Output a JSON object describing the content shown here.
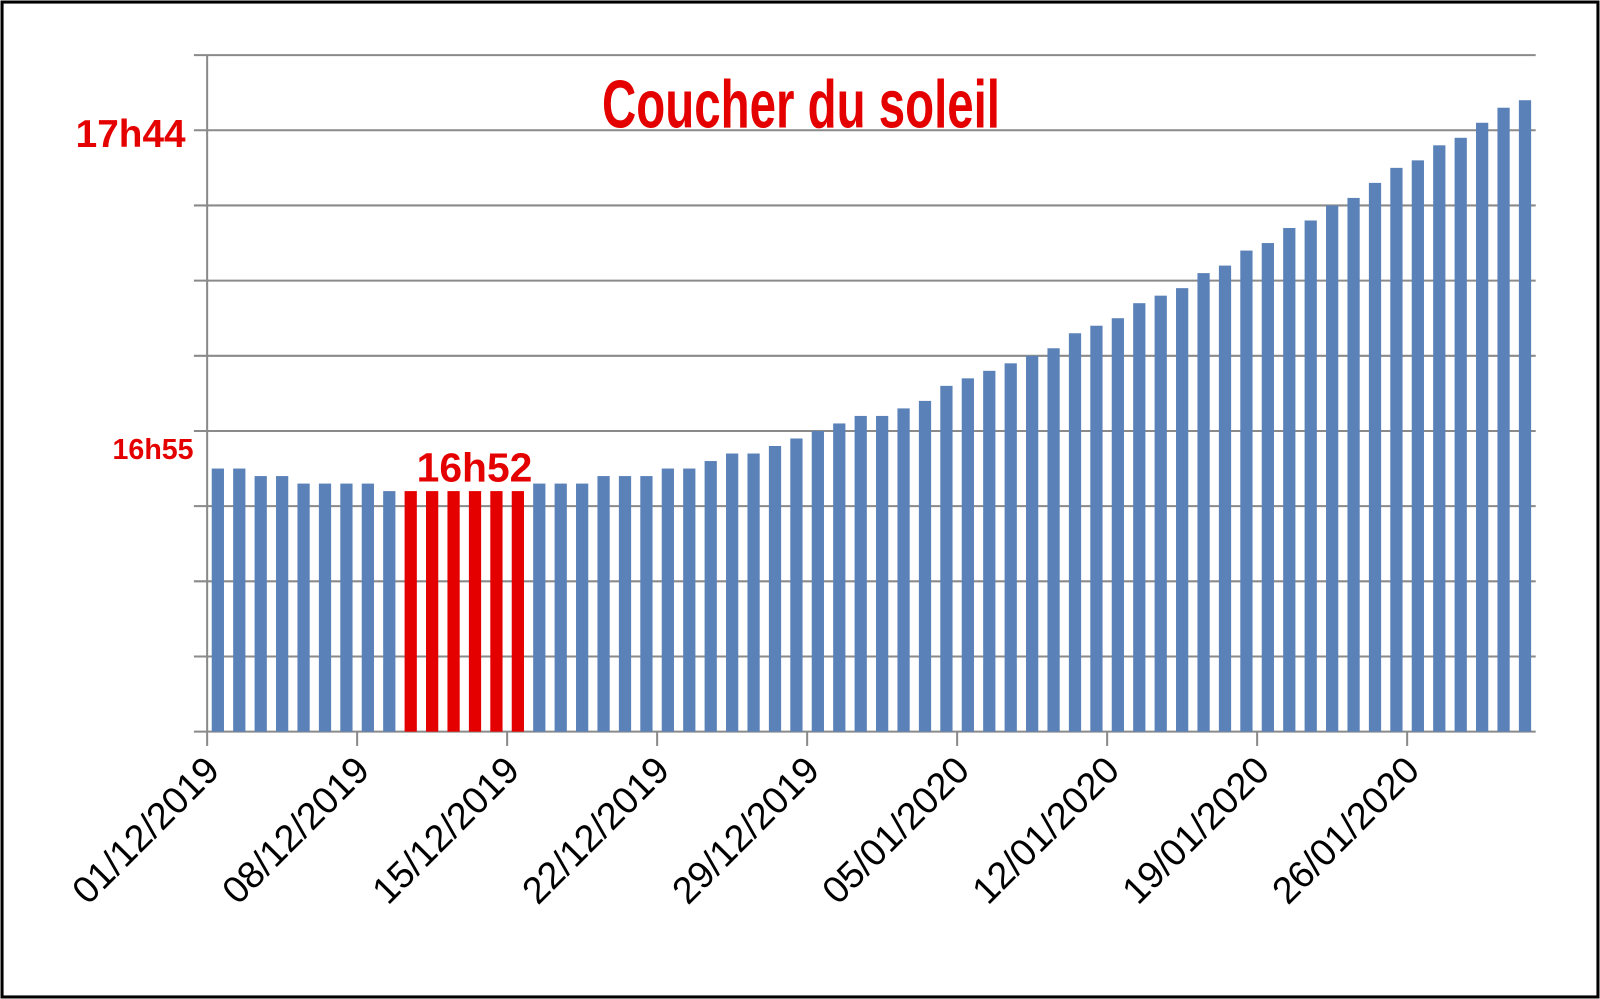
{
  "chart_data": {
    "type": "bar",
    "title": "Coucher du soleil",
    "annotations": [
      "17h44",
      "16h55",
      "16h52"
    ],
    "categories": [
      "01/12/2019",
      null,
      null,
      null,
      null,
      null,
      null,
      "08/12/2019",
      null,
      null,
      null,
      null,
      null,
      null,
      "15/12/2019",
      null,
      null,
      null,
      null,
      null,
      null,
      "22/12/2019",
      null,
      null,
      null,
      null,
      null,
      null,
      "29/12/2019",
      null,
      null,
      null,
      null,
      null,
      null,
      "05/01/2020",
      null,
      null,
      null,
      null,
      null,
      null,
      "12/01/2020",
      null,
      null,
      null,
      null,
      null,
      null,
      "19/01/2020",
      null,
      null,
      null,
      null,
      null,
      null,
      "26/01/2020",
      null,
      null,
      null,
      null,
      null
    ],
    "values": [
      1015,
      1015,
      1014,
      1014,
      1013,
      1013,
      1013,
      1013,
      1012,
      1012,
      1012,
      1012,
      1012,
      1012,
      1012,
      1013,
      1013,
      1013,
      1014,
      1014,
      1014,
      1015,
      1015,
      1016,
      1017,
      1017,
      1018,
      1019,
      1020,
      1021,
      1022,
      1022,
      1023,
      1024,
      1026,
      1027,
      1028,
      1029,
      1030,
      1031,
      1033,
      1034,
      1035,
      1037,
      1038,
      1039,
      1041,
      1042,
      1044,
      1045,
      1047,
      1048,
      1050,
      1051,
      1053,
      1055,
      1056,
      1058,
      1059,
      1061,
      1063,
      1064
    ],
    "colors": [
      "#5b82b8",
      "#5b82b8",
      "#5b82b8",
      "#5b82b8",
      "#5b82b8",
      "#5b82b8",
      "#5b82b8",
      "#5b82b8",
      "#5b82b8",
      "#e50000",
      "#e50000",
      "#e50000",
      "#e50000",
      "#e50000",
      "#e50000",
      "#5b82b8",
      "#5b82b8",
      "#5b82b8",
      "#5b82b8",
      "#5b82b8",
      "#5b82b8",
      "#5b82b8",
      "#5b82b8",
      "#5b82b8",
      "#5b82b8",
      "#5b82b8",
      "#5b82b8",
      "#5b82b8",
      "#5b82b8",
      "#5b82b8",
      "#5b82b8",
      "#5b82b8",
      "#5b82b8",
      "#5b82b8",
      "#5b82b8",
      "#5b82b8",
      "#5b82b8",
      "#5b82b8",
      "#5b82b8",
      "#5b82b8",
      "#5b82b8",
      "#5b82b8",
      "#5b82b8",
      "#5b82b8",
      "#5b82b8",
      "#5b82b8",
      "#5b82b8",
      "#5b82b8",
      "#5b82b8",
      "#5b82b8",
      "#5b82b8",
      "#5b82b8",
      "#5b82b8",
      "#5b82b8",
      "#5b82b8",
      "#5b82b8",
      "#5b82b8",
      "#5b82b8",
      "#5b82b8",
      "#5b82b8",
      "#5b82b8",
      "#5b82b8"
    ],
    "ylim": [
      980,
      1070
    ],
    "yticks": [
      980,
      990,
      1000,
      1010,
      1020,
      1030,
      1040,
      1050,
      1060,
      1070
    ],
    "grid": true
  }
}
